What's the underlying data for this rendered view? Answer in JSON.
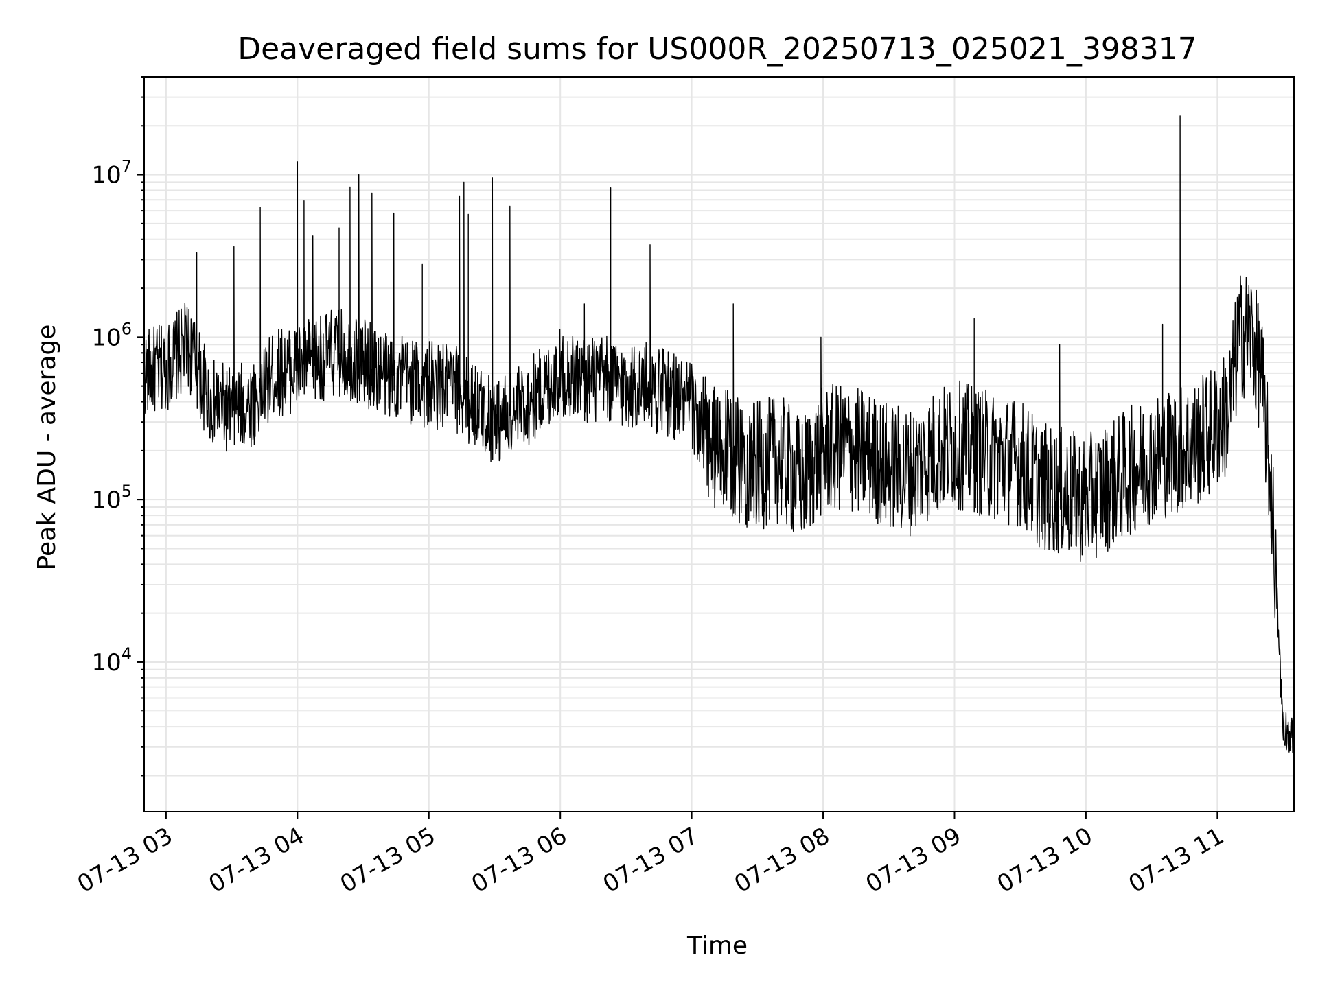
{
  "chart_data": {
    "type": "line",
    "title": "Deaveraged field sums for US000R_20250713_025021_398317",
    "xlabel": "Time",
    "ylabel": "Peak ADU - average",
    "yscale": "log",
    "grid": true,
    "grid_minor": true,
    "line_color": "#000000",
    "grid_color": "#e6e6e6",
    "xlim": [
      "2025-07-13 02:50",
      "2025-07-13 11:35"
    ],
    "ylim": [
      1200,
      40000000
    ],
    "x_ticks": [
      {
        "value": "2025-07-13 03:00",
        "label": "07-13 03"
      },
      {
        "value": "2025-07-13 04:00",
        "label": "07-13 04"
      },
      {
        "value": "2025-07-13 05:00",
        "label": "07-13 05"
      },
      {
        "value": "2025-07-13 06:00",
        "label": "07-13 06"
      },
      {
        "value": "2025-07-13 07:00",
        "label": "07-13 07"
      },
      {
        "value": "2025-07-13 08:00",
        "label": "07-13 08"
      },
      {
        "value": "2025-07-13 09:00",
        "label": "07-13 09"
      },
      {
        "value": "2025-07-13 10:00",
        "label": "07-13 10"
      },
      {
        "value": "2025-07-13 11:00",
        "label": "07-13 11"
      }
    ],
    "y_ticks": [
      {
        "value": 10000,
        "base": "10",
        "exp": "4"
      },
      {
        "value": 100000,
        "base": "10",
        "exp": "5"
      },
      {
        "value": 1000000,
        "base": "10",
        "exp": "6"
      },
      {
        "value": 10000000,
        "base": "10",
        "exp": "7"
      }
    ],
    "series": [
      {
        "x": [
          "2025-07-13 02:50",
          "2025-07-13 03:00",
          "2025-07-13 03:10",
          "2025-07-13 03:15",
          "2025-07-13 03:20",
          "2025-07-13 03:30",
          "2025-07-13 03:40",
          "2025-07-13 03:45",
          "2025-07-13 03:50",
          "2025-07-13 04:00",
          "2025-07-13 04:10",
          "2025-07-13 04:20",
          "2025-07-13 04:30",
          "2025-07-13 04:40",
          "2025-07-13 04:50",
          "2025-07-13 05:00",
          "2025-07-13 05:10",
          "2025-07-13 05:20",
          "2025-07-13 05:30",
          "2025-07-13 05:40",
          "2025-07-13 05:50",
          "2025-07-13 06:00",
          "2025-07-13 06:10",
          "2025-07-13 06:20",
          "2025-07-13 06:30",
          "2025-07-13 06:40",
          "2025-07-13 06:50",
          "2025-07-13 07:00",
          "2025-07-13 07:05",
          "2025-07-13 07:10",
          "2025-07-13 07:20",
          "2025-07-13 07:30",
          "2025-07-13 07:40",
          "2025-07-13 07:50",
          "2025-07-13 08:00",
          "2025-07-13 08:10",
          "2025-07-13 08:20",
          "2025-07-13 08:30",
          "2025-07-13 08:40",
          "2025-07-13 08:50",
          "2025-07-13 09:00",
          "2025-07-13 09:10",
          "2025-07-13 09:20",
          "2025-07-13 09:30",
          "2025-07-13 09:40",
          "2025-07-13 09:50",
          "2025-07-13 10:00",
          "2025-07-13 10:10",
          "2025-07-13 10:20",
          "2025-07-13 10:30",
          "2025-07-13 10:40",
          "2025-07-13 10:50",
          "2025-07-13 11:00",
          "2025-07-13 11:05",
          "2025-07-13 11:10",
          "2025-07-13 11:15",
          "2025-07-13 11:20",
          "2025-07-13 11:25",
          "2025-07-13 11:30",
          "2025-07-13 11:35"
        ],
        "y": [
          600000,
          650000,
          900000,
          600000,
          400000,
          350000,
          400000,
          500000,
          600000,
          650000,
          750000,
          800000,
          700000,
          600000,
          550000,
          500000,
          500000,
          400000,
          300000,
          350000,
          450000,
          600000,
          550000,
          550000,
          500000,
          500000,
          450000,
          380000,
          250000,
          200000,
          180000,
          160000,
          180000,
          130000,
          200000,
          210000,
          190000,
          160000,
          150000,
          190000,
          220000,
          200000,
          180000,
          170000,
          120000,
          110000,
          100000,
          120000,
          150000,
          180000,
          200000,
          220000,
          280000,
          350000,
          1000000,
          1100000,
          600000,
          100000,
          4000,
          3500
        ],
        "spikes": [
          {
            "x": "2025-07-13 03:14",
            "y": 3300000
          },
          {
            "x": "2025-07-13 03:31",
            "y": 3600000
          },
          {
            "x": "2025-07-13 03:43",
            "y": 6300000
          },
          {
            "x": "2025-07-13 04:00",
            "y": 12000000
          },
          {
            "x": "2025-07-13 04:03",
            "y": 6900000
          },
          {
            "x": "2025-07-13 04:07",
            "y": 4200000
          },
          {
            "x": "2025-07-13 04:19",
            "y": 4700000
          },
          {
            "x": "2025-07-13 04:24",
            "y": 8400000
          },
          {
            "x": "2025-07-13 04:28",
            "y": 10000000
          },
          {
            "x": "2025-07-13 04:34",
            "y": 7700000
          },
          {
            "x": "2025-07-13 04:44",
            "y": 5800000
          },
          {
            "x": "2025-07-13 04:57",
            "y": 2800000
          },
          {
            "x": "2025-07-13 05:14",
            "y": 7400000
          },
          {
            "x": "2025-07-13 05:16",
            "y": 9000000
          },
          {
            "x": "2025-07-13 05:18",
            "y": 5700000
          },
          {
            "x": "2025-07-13 05:29",
            "y": 9600000
          },
          {
            "x": "2025-07-13 05:37",
            "y": 6400000
          },
          {
            "x": "2025-07-13 06:11",
            "y": 1600000
          },
          {
            "x": "2025-07-13 06:23",
            "y": 8300000
          },
          {
            "x": "2025-07-13 06:41",
            "y": 3700000
          },
          {
            "x": "2025-07-13 07:19",
            "y": 1600000
          },
          {
            "x": "2025-07-13 07:59",
            "y": 1000000
          },
          {
            "x": "2025-07-13 09:09",
            "y": 1300000
          },
          {
            "x": "2025-07-13 09:48",
            "y": 900000
          },
          {
            "x": "2025-07-13 10:35",
            "y": 1200000
          },
          {
            "x": "2025-07-13 10:43",
            "y": 23000000
          },
          {
            "x": "2025-07-13 11:18",
            "y": 1600000
          }
        ]
      }
    ]
  }
}
